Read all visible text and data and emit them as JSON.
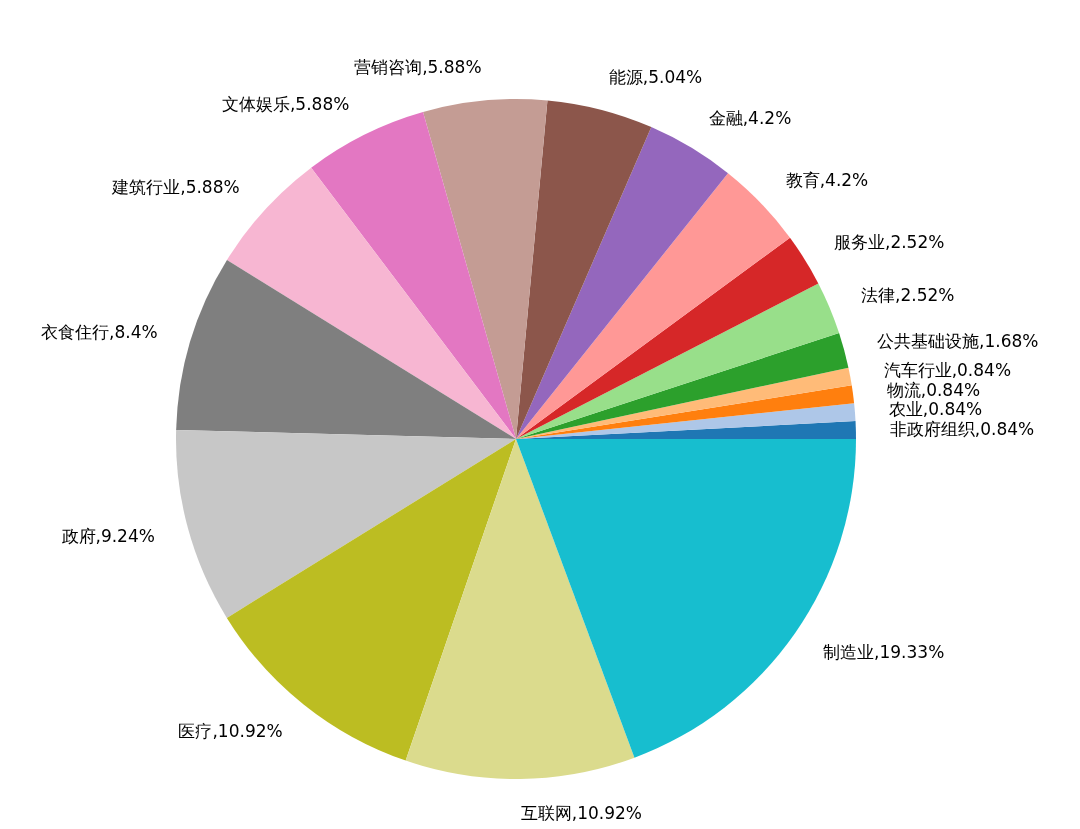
{
  "chart_data": {
    "type": "pie",
    "categories": [
      "非政府组织",
      "农业",
      "物流",
      "汽车行业",
      "公共基础设施",
      "法律",
      "服务业",
      "教育",
      "金融",
      "能源",
      "营销咨询",
      "文体娱乐",
      "建筑行业",
      "衣食住行",
      "政府",
      "医疗",
      "互联网",
      "制造业"
    ],
    "values": [
      0.84,
      0.84,
      0.84,
      0.84,
      1.68,
      2.52,
      2.52,
      4.2,
      4.2,
      5.04,
      5.88,
      5.88,
      5.88,
      8.4,
      9.24,
      10.92,
      10.92,
      19.33
    ],
    "value_labels": [
      "0.84%",
      "0.84%",
      "0.84%",
      "0.84%",
      "1.68%",
      "2.52%",
      "2.52%",
      "4.2%",
      "4.2%",
      "5.04%",
      "5.88%",
      "5.88%",
      "5.88%",
      "8.4%",
      "9.24%",
      "10.92%",
      "10.92%",
      "19.33%"
    ],
    "colors": [
      "#1f77b4",
      "#aec7e8",
      "#ff7f0e",
      "#ffbb78",
      "#2ca02c",
      "#98df8a",
      "#d62728",
      "#ff9896",
      "#9467bd",
      "#8c564b",
      "#c49c94",
      "#e377c2",
      "#f7b6d2",
      "#7f7f7f",
      "#c7c7c7",
      "#bcbd22",
      "#dbdb8d",
      "#17becf"
    ],
    "legend": false
  }
}
